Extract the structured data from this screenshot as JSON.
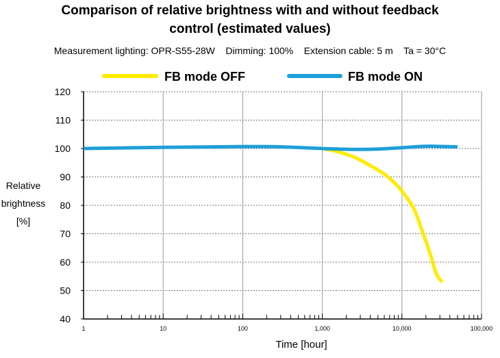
{
  "chart_data": {
    "type": "line",
    "title": "Comparison of relative brightness with and without feedback control (estimated values)",
    "title_lines": [
      "Comparison of relative brightness with and without feedback",
      "control (estimated values)"
    ],
    "subtitle": "Measurement lighting: OPR-S55-28W    Dimming: 100%    Extension cable: 5 m    Ta = 30°C",
    "xlabel": "Time [hour]",
    "ylabel_lines": [
      "Relative",
      "brightness",
      "[%]"
    ],
    "xscale": "log",
    "xlim": [
      1,
      100000
    ],
    "ylim": [
      40,
      120
    ],
    "x_ticks": [
      1,
      10,
      100,
      1000,
      10000,
      100000
    ],
    "x_tick_labels": [
      "1",
      "10",
      "100",
      "1,000",
      "10,000",
      "100,000"
    ],
    "y_ticks": [
      40,
      50,
      60,
      70,
      80,
      90,
      100,
      110,
      120
    ],
    "y_tick_labels": [
      "40",
      "50",
      "60",
      "70",
      "80",
      "90",
      "100",
      "110",
      "120"
    ],
    "grid": "dashed horizontal and vertical at major ticks",
    "legend_position": "top",
    "series": [
      {
        "name": "FB mode OFF",
        "color": "#FFEB00",
        "x": [
          1000,
          1500,
          2500,
          4000,
          6000,
          8000,
          10000,
          14000,
          18000,
          22000,
          27000,
          32000
        ],
        "y": [
          100,
          99,
          97,
          94,
          91,
          88,
          85,
          79,
          71,
          64,
          56,
          53
        ]
      },
      {
        "name": "FB mode ON",
        "color": "#1E9FD8",
        "x": [
          1,
          10,
          100,
          300,
          1000,
          2500,
          5000,
          10000,
          20000,
          50000
        ],
        "y": [
          100,
          100.4,
          100.7,
          100.6,
          100,
          99.7,
          99.8,
          100.3,
          100.8,
          100.6
        ]
      }
    ]
  }
}
